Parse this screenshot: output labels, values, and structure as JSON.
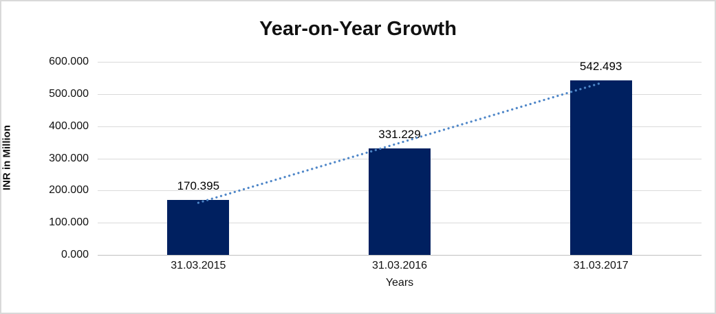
{
  "chart": {
    "title": "Year-on-Year Growth",
    "xlabel": "Years",
    "ylabel": "INR in Million"
  },
  "chart_data": {
    "type": "bar",
    "title": "Year-on-Year Growth",
    "xlabel": "Years",
    "ylabel": "INR in Million",
    "categories": [
      "31.03.2015",
      "31.03.2016",
      "31.03.2017"
    ],
    "values": [
      170.395,
      331.229,
      542.493
    ],
    "data_labels": [
      "170.395",
      "331.229",
      "542.493"
    ],
    "ylim": [
      0,
      600
    ],
    "ytick_step": 100,
    "ytick_labels": [
      "0.000",
      "100.000",
      "200.000",
      "300.000",
      "400.000",
      "500.000",
      "600.000"
    ],
    "grid": true,
    "legend_position": "none",
    "bar_color": "#002060",
    "gridline_color": "#d9d9d9",
    "trendline": {
      "type": "linear",
      "style": "dotted",
      "color": "#4e86c8"
    }
  }
}
